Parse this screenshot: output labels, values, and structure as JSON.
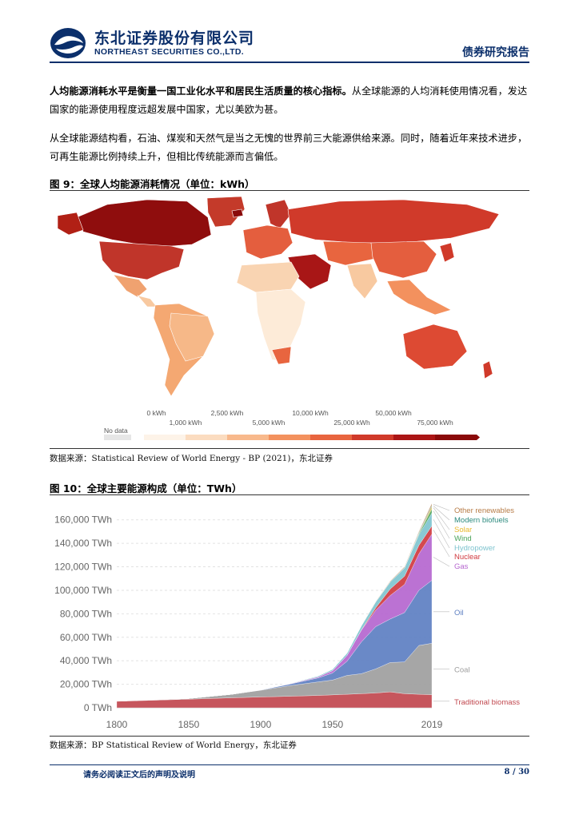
{
  "header": {
    "brand_cn": "东北证券股份有限公司",
    "brand_en": "NORTHEAST SECURITIES CO.,LTD.",
    "report_type": "债券研究报告",
    "brand_color": "#0b2f6b"
  },
  "body": {
    "para1_bold": "人均能源消耗水平是衡量一国工业化水平和居民生活质量的核心指标。",
    "para1_rest": "从全球能源的人均消耗使用情况看，发达国家的能源使用程度远超发展中国家，尤以美欧为甚。",
    "para2": "从全球能源结构看，石油、煤炭和天然气是当之无愧的世界前三大能源供给来源。同时，随着近年来技术进步，可再生能源比例持续上升，但相比传统能源而言偏低。"
  },
  "figure9": {
    "title": "图  9：全球人均能源消耗情况（单位：kWh）",
    "source": "数据来源：Statistical Review of World Energy - BP (2021)，东北证券",
    "legend": {
      "no_data": "No data",
      "top_labels": [
        "0 kWh",
        "2,500 kWh",
        "10,000 kWh",
        "50,000 kWh"
      ],
      "bottom_labels": [
        "1,000 kWh",
        "5,000 kWh",
        "25,000 kWh",
        "75,000 kWh"
      ],
      "colors": [
        "#fdf3e8",
        "#fbdcc0",
        "#f8b98c",
        "#f3915e",
        "#e8653f",
        "#d03a2a",
        "#ab1515",
        "#8a0a0a"
      ],
      "no_data_color": "#e6e6e6"
    }
  },
  "figure10": {
    "title": "图  10：全球主要能源构成（单位：TWh）",
    "source": "数据来源：BP Statistical Review of World Energy，东北证券"
  },
  "chart_data": {
    "type": "area",
    "title": "",
    "xlabel": "",
    "ylabel": "",
    "x_ticks": [
      "1800",
      "1850",
      "1900",
      "1950",
      "2019"
    ],
    "y_ticks": [
      "0 TWh",
      "20,000 TWh",
      "40,000 TWh",
      "60,000 TWh",
      "80,000 TWh",
      "100,000 TWh",
      "120,000 TWh",
      "140,000 TWh",
      "160,000 TWh"
    ],
    "ylim": [
      0,
      170000
    ],
    "xlim": [
      1800,
      2019
    ],
    "grid": true,
    "stacked": true,
    "x": [
      1800,
      1850,
      1880,
      1900,
      1920,
      1940,
      1950,
      1960,
      1970,
      1980,
      1990,
      2000,
      2010,
      2019
    ],
    "series": [
      {
        "name": "Traditional biomass",
        "color": "#c1484f",
        "values": [
          5500,
          7300,
          8500,
          9200,
          9800,
          10500,
          11000,
          11500,
          12000,
          12600,
          13500,
          12000,
          11500,
          11100
        ]
      },
      {
        "name": "Coal",
        "color": "#9e9e9e",
        "values": [
          100,
          600,
          3000,
          5700,
          9000,
          11500,
          12600,
          16000,
          17000,
          20500,
          25000,
          27000,
          41500,
          43800
        ]
      },
      {
        "name": "Oil",
        "color": "#5d7fc2",
        "values": [
          0,
          0,
          0,
          200,
          1200,
          3400,
          6000,
          12000,
          27000,
          36000,
          37000,
          42000,
          47000,
          53600
        ]
      },
      {
        "name": "Gas",
        "color": "#b566cf",
        "values": [
          0,
          0,
          0,
          70,
          300,
          900,
          2000,
          5000,
          10000,
          14000,
          20000,
          24000,
          31000,
          39300
        ]
      },
      {
        "name": "Nuclear",
        "color": "#d03a3f",
        "values": [
          0,
          0,
          0,
          0,
          0,
          0,
          0,
          0,
          200,
          2000,
          5500,
          7000,
          7300,
          7000
        ]
      },
      {
        "name": "Hydropower",
        "color": "#7fc4cf",
        "values": [
          0,
          0,
          0,
          50,
          300,
          800,
          1200,
          2000,
          3500,
          5000,
          6000,
          7000,
          9000,
          11000
        ]
      },
      {
        "name": "Wind",
        "color": "#4aa35a",
        "values": [
          0,
          0,
          0,
          0,
          0,
          0,
          0,
          0,
          0,
          0,
          10,
          100,
          900,
          3500
        ]
      },
      {
        "name": "Solar",
        "color": "#e9b92c",
        "values": [
          0,
          0,
          0,
          0,
          0,
          0,
          0,
          0,
          0,
          0,
          0,
          5,
          100,
          2000
        ]
      },
      {
        "name": "Modern biofuels",
        "color": "#2c8a7e",
        "values": [
          0,
          0,
          0,
          0,
          0,
          0,
          0,
          0,
          0,
          50,
          200,
          300,
          900,
          1100
        ]
      },
      {
        "name": "Other renewables",
        "color": "#b77c47",
        "values": [
          0,
          0,
          0,
          0,
          0,
          0,
          0,
          0,
          100,
          300,
          500,
          600,
          800,
          1600
        ]
      }
    ]
  },
  "footer": {
    "disclaimer": "请务必阅读正文后的声明及说明",
    "page": "8 / 30"
  }
}
